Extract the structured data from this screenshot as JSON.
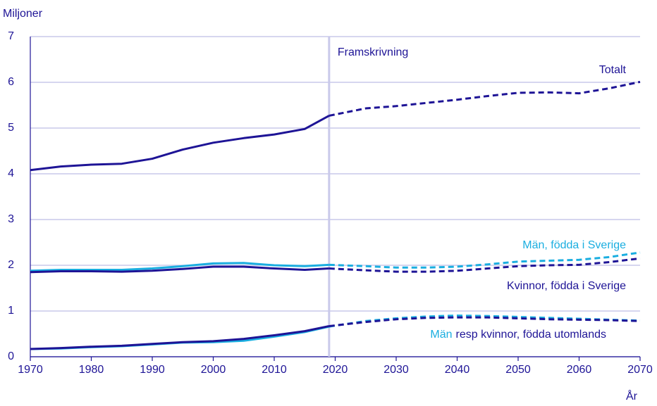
{
  "chart_data": {
    "type": "line",
    "y_label": "Miljoner",
    "x_label": "År",
    "x": [
      1970,
      1975,
      1980,
      1985,
      1990,
      1995,
      2000,
      2005,
      2010,
      2015,
      2019,
      2025,
      2030,
      2035,
      2040,
      2045,
      2050,
      2055,
      2060,
      2065,
      2070
    ],
    "series": [
      {
        "name": "Totalt",
        "color": "#1e1496",
        "values": [
          4.08,
          4.16,
          4.2,
          4.22,
          4.33,
          4.53,
          4.68,
          4.78,
          4.86,
          4.98,
          5.27,
          5.43,
          5.48,
          5.55,
          5.62,
          5.7,
          5.77,
          5.78,
          5.76,
          5.87,
          6.01
        ]
      },
      {
        "name": "Män, födda i Sverige",
        "color": "#1aaee0",
        "values": [
          1.88,
          1.9,
          1.9,
          1.9,
          1.93,
          1.98,
          2.04,
          2.05,
          2.0,
          1.98,
          2.01,
          1.98,
          1.95,
          1.95,
          1.97,
          2.02,
          2.08,
          2.1,
          2.12,
          2.18,
          2.28
        ]
      },
      {
        "name": "Kvinnor, födda i Sverige",
        "color": "#1e1496",
        "values": [
          1.85,
          1.87,
          1.87,
          1.86,
          1.88,
          1.92,
          1.97,
          1.97,
          1.93,
          1.9,
          1.93,
          1.89,
          1.86,
          1.86,
          1.88,
          1.93,
          1.98,
          2.0,
          2.01,
          2.07,
          2.15
        ]
      },
      {
        "color": "#1aaee0",
        "values": [
          0.17,
          0.18,
          0.21,
          0.23,
          0.27,
          0.31,
          0.32,
          0.35,
          0.44,
          0.54,
          0.66,
          0.78,
          0.84,
          0.88,
          0.9,
          0.89,
          0.87,
          0.85,
          0.83,
          0.81,
          0.79
        ]
      },
      {
        "color": "#1e1496",
        "values": [
          0.17,
          0.19,
          0.22,
          0.24,
          0.28,
          0.32,
          0.34,
          0.39,
          0.47,
          0.56,
          0.67,
          0.76,
          0.82,
          0.85,
          0.86,
          0.86,
          0.84,
          0.82,
          0.81,
          0.8,
          0.78
        ]
      }
    ],
    "annotation": {
      "parts": [
        {
          "text": "Män",
          "color": "#1aaee0"
        },
        {
          "text": "resp kvinnor, födda utomlands",
          "color": "#1e1496"
        }
      ]
    },
    "projection": {
      "x": 2019,
      "label": "Framskrivning"
    },
    "xlim": [
      1970,
      2070
    ],
    "xticks": [
      1970,
      1980,
      1990,
      2000,
      2010,
      2020,
      2030,
      2040,
      2050,
      2060,
      2070
    ],
    "ylim": [
      0,
      7
    ],
    "yticks": [
      0,
      1,
      2,
      3,
      4,
      5,
      6,
      7
    ],
    "grid": true
  }
}
